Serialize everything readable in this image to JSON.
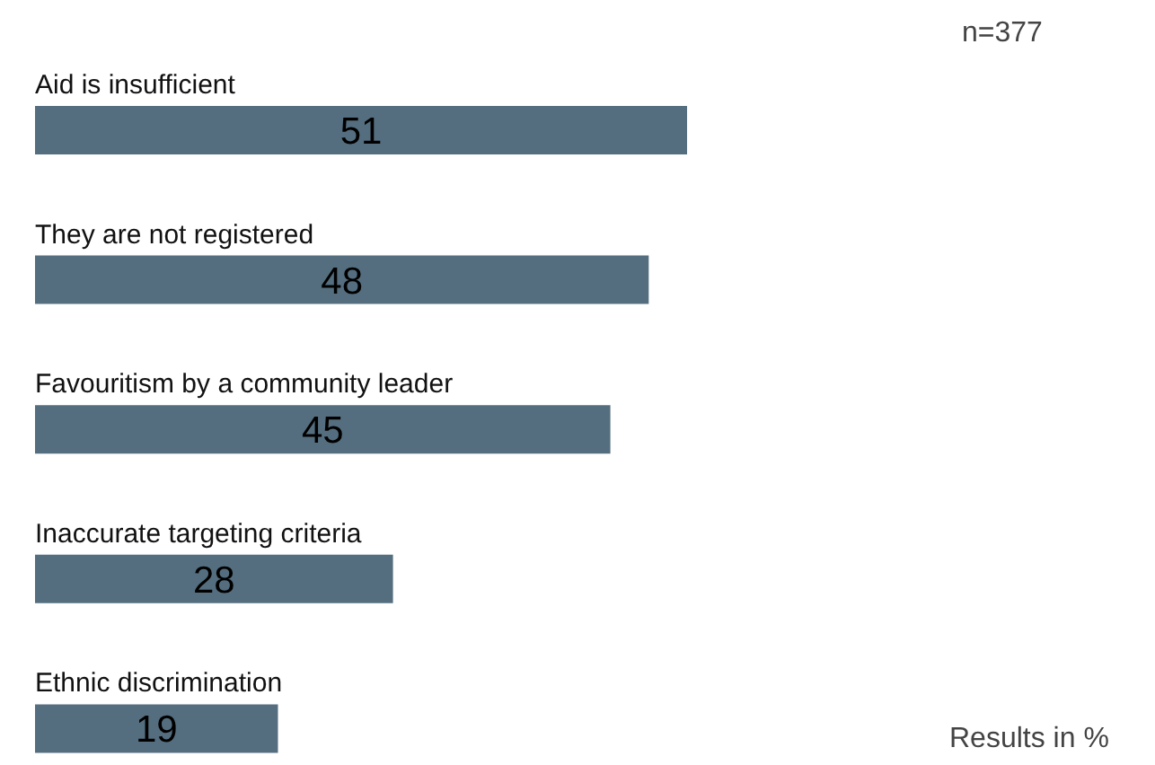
{
  "chart_data": {
    "type": "bar",
    "orientation": "horizontal",
    "categories": [
      "Aid is insufficient",
      "They are not registered",
      "Favouritism by a community leader",
      "Inaccurate targeting criteria",
      "Ethnic discrimination"
    ],
    "values": [
      51,
      48,
      45,
      28,
      19
    ],
    "color": "#546e7f",
    "data_labels": true,
    "annotations": [
      "n=377",
      "Results in %"
    ]
  }
}
